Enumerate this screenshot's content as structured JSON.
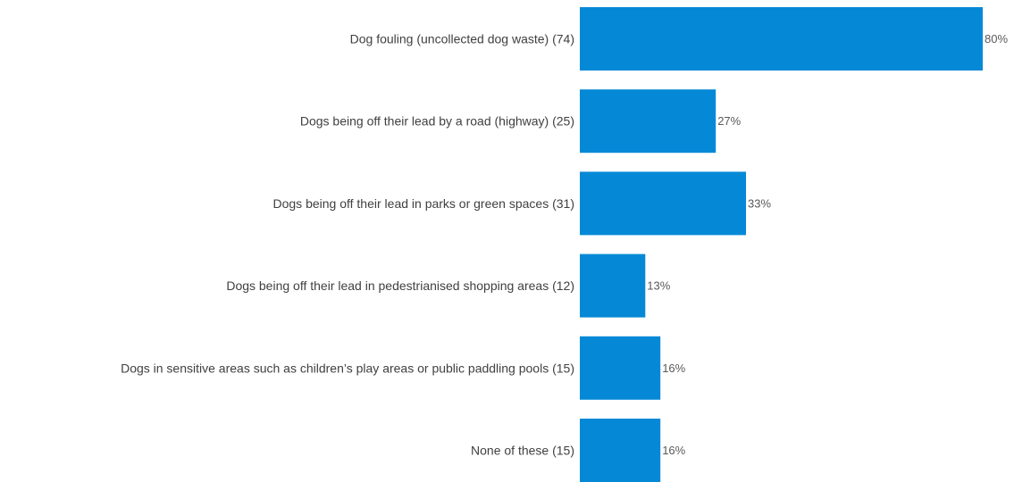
{
  "chart_data": {
    "type": "bar",
    "orientation": "horizontal",
    "title": "",
    "xlabel": "",
    "ylabel": "",
    "categories": [
      "Dog fouling (uncollected dog waste) (74)",
      "Dogs being off their lead by a road (highway) (25)",
      "Dogs being off their lead in parks or green spaces (31)",
      "Dogs being off their lead in pedestrianised shopping areas (12)",
      "Dogs in sensitive areas such as children’s play areas or public paddling pools (15)",
      "None of these (15)"
    ],
    "values": [
      80,
      27,
      33,
      13,
      16,
      16
    ],
    "value_labels": [
      "80%",
      "27%",
      "33%",
      "13%",
      "16%",
      "16%"
    ],
    "xlim": [
      0,
      100
    ],
    "grid": false,
    "legend": "none",
    "bar_color": "#0589d6"
  }
}
